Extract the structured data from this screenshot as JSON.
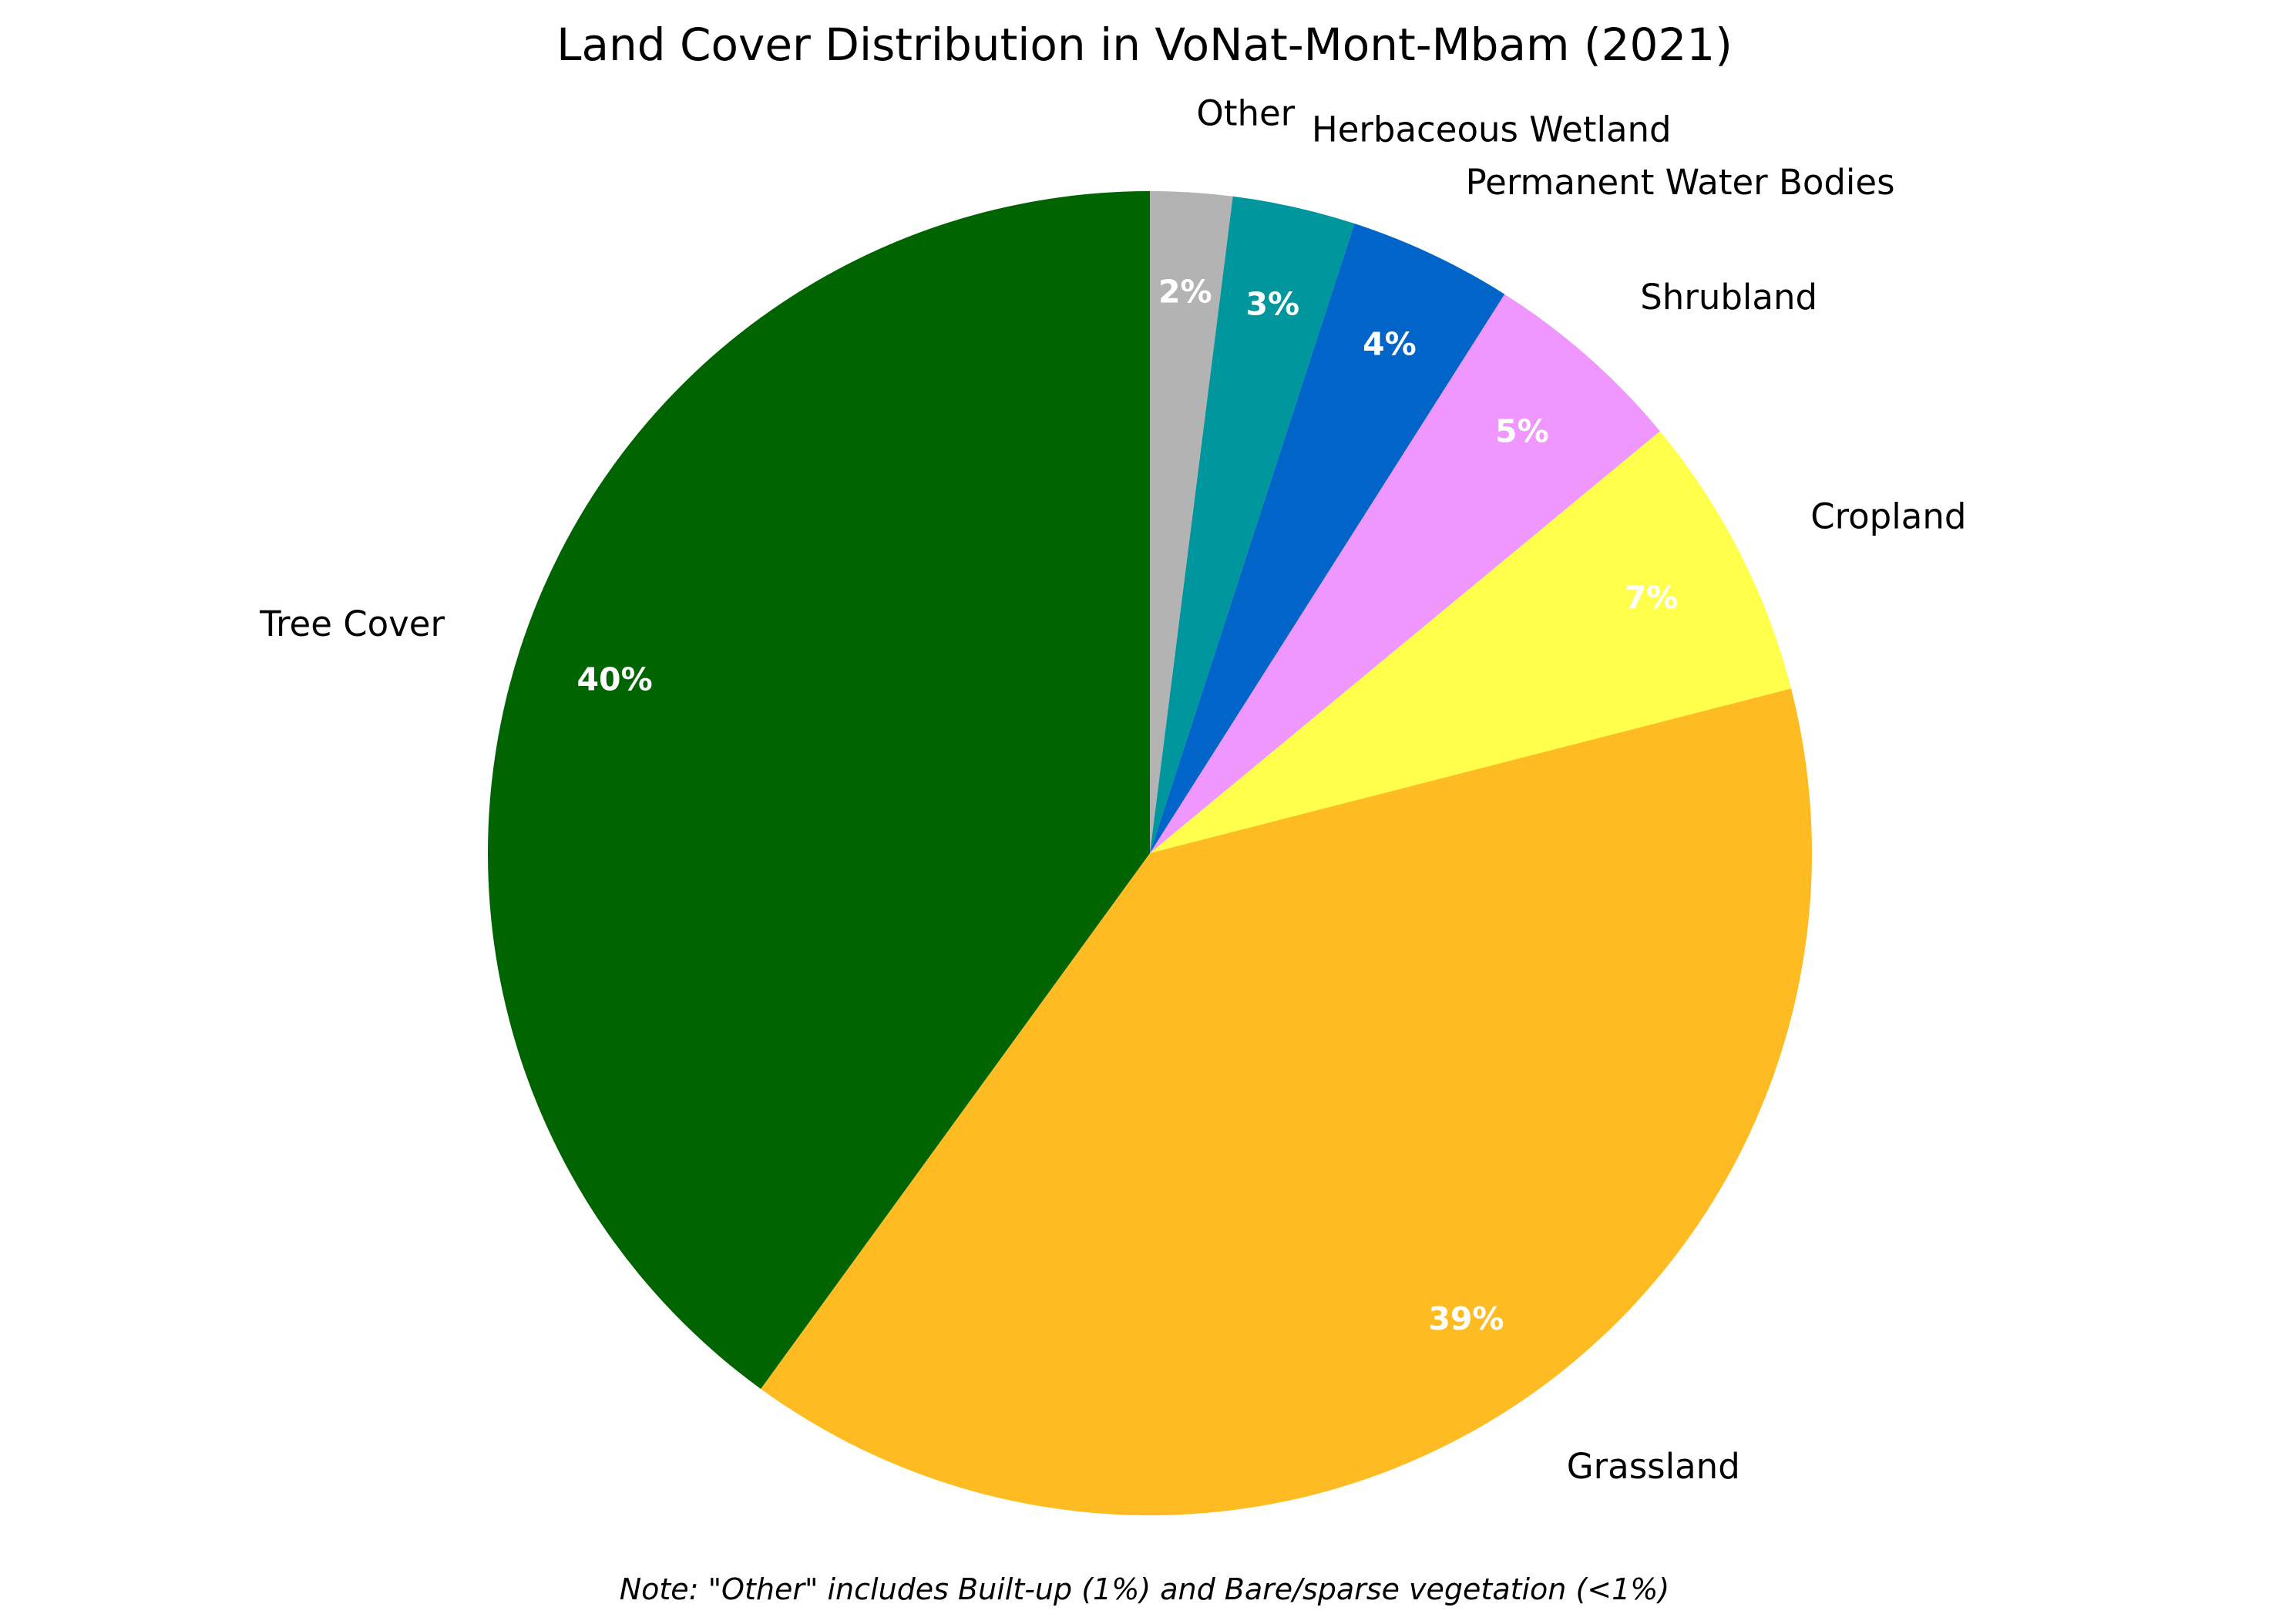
{
  "chart_data": {
    "type": "pie",
    "title": "Land Cover Distribution in VoNat-Mont-Mbam (2021)",
    "note": "Note: \"Other\" includes Built-up (1%) and Bare/sparse vegetation (<1%)",
    "start": "top",
    "direction": "clockwise",
    "slices": [
      {
        "label": "Other",
        "value": 2,
        "pct_label": "2%",
        "color": "#b3b3b3"
      },
      {
        "label": "Herbaceous Wetland",
        "value": 3,
        "pct_label": "3%",
        "color": "#00969e"
      },
      {
        "label": "Permanent Water Bodies",
        "value": 4,
        "pct_label": "4%",
        "color": "#0064c8"
      },
      {
        "label": "Shrubland",
        "value": 5,
        "pct_label": "5%",
        "color": "#f096ff"
      },
      {
        "label": "Cropland",
        "value": 7,
        "pct_label": "7%",
        "color": "#ffff4c"
      },
      {
        "label": "Grassland",
        "value": 39,
        "pct_label": "39%",
        "color": "#ffbb22"
      },
      {
        "label": "Tree Cover",
        "value": 40,
        "pct_label": "40%",
        "color": "#006400"
      }
    ]
  }
}
